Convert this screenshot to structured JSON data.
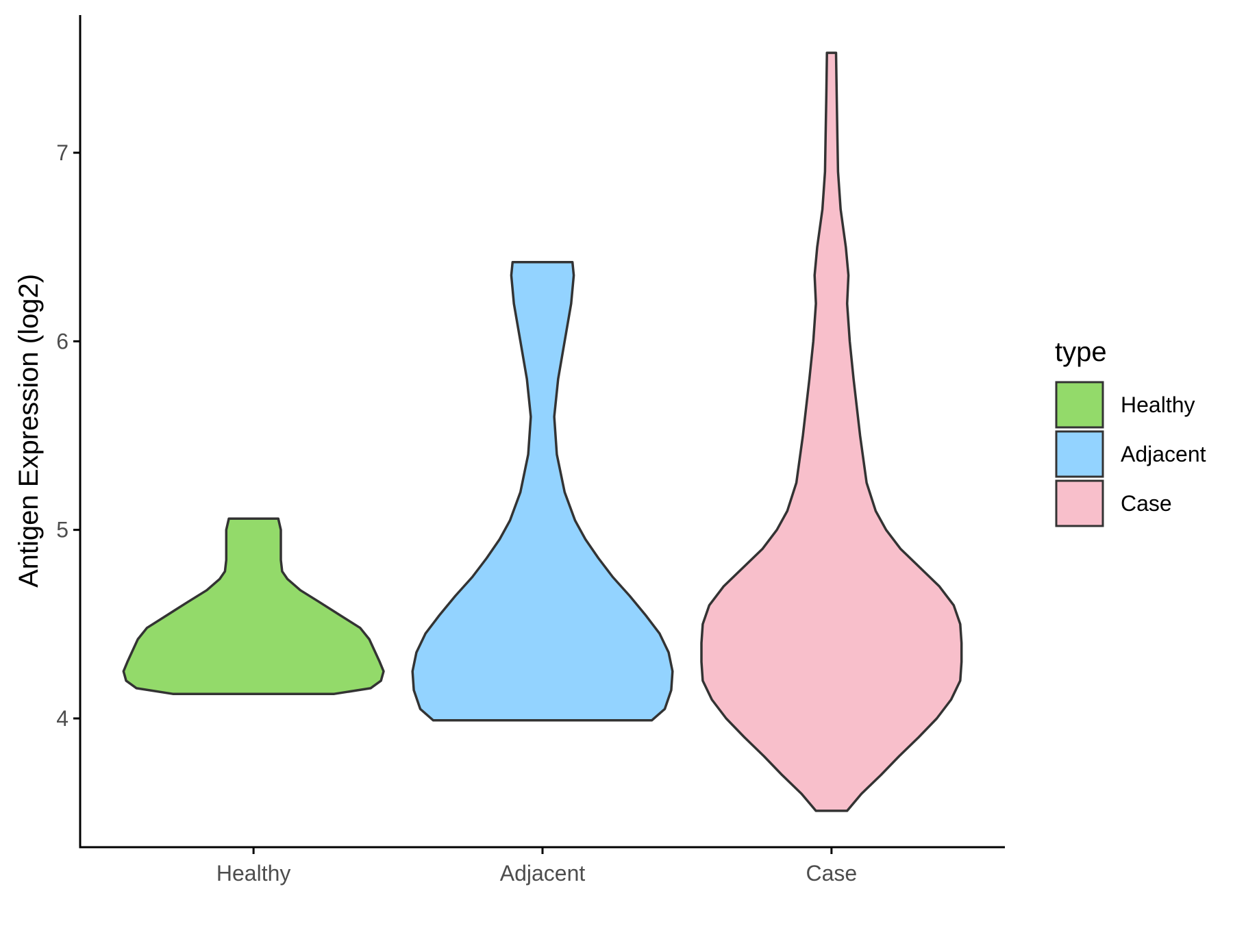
{
  "chart_data": {
    "type": "violin",
    "title": "",
    "xlabel": "",
    "ylabel": "Antigen Expression (log2)",
    "ylim": [
      3.35,
      7.75
    ],
    "yticks": [
      4,
      5,
      6,
      7
    ],
    "categories": [
      "Healthy",
      "Adjacent",
      "Case"
    ],
    "grid": false,
    "legend": {
      "title": "type",
      "position": "right",
      "entries": [
        {
          "label": "Healthy",
          "color": "#93DA6A"
        },
        {
          "label": "Adjacent",
          "color": "#93D3FF"
        },
        {
          "label": "Case",
          "color": "#F8BFCB"
        }
      ]
    },
    "series": [
      {
        "category": "Healthy",
        "color": "#93DA6A",
        "min": 4.13,
        "max": 5.06,
        "profile": [
          [
            4.13,
            0.62
          ],
          [
            4.16,
            0.9
          ],
          [
            4.2,
            0.98
          ],
          [
            4.25,
            1.0
          ],
          [
            4.3,
            0.97
          ],
          [
            4.36,
            0.93
          ],
          [
            4.42,
            0.89
          ],
          [
            4.48,
            0.82
          ],
          [
            4.55,
            0.66
          ],
          [
            4.62,
            0.5
          ],
          [
            4.68,
            0.36
          ],
          [
            4.74,
            0.26
          ],
          [
            4.78,
            0.22
          ],
          [
            4.84,
            0.21
          ],
          [
            4.9,
            0.21
          ],
          [
            4.96,
            0.21
          ],
          [
            5.0,
            0.21
          ],
          [
            5.03,
            0.2
          ],
          [
            5.06,
            0.19
          ]
        ]
      },
      {
        "category": "Adjacent",
        "color": "#93D3FF",
        "min": 3.99,
        "max": 6.42,
        "profile": [
          [
            3.99,
            0.84
          ],
          [
            4.05,
            0.94
          ],
          [
            4.15,
            0.99
          ],
          [
            4.25,
            1.0
          ],
          [
            4.35,
            0.97
          ],
          [
            4.45,
            0.9
          ],
          [
            4.55,
            0.79
          ],
          [
            4.65,
            0.67
          ],
          [
            4.75,
            0.54
          ],
          [
            4.85,
            0.43
          ],
          [
            4.95,
            0.33
          ],
          [
            5.05,
            0.25
          ],
          [
            5.2,
            0.17
          ],
          [
            5.4,
            0.11
          ],
          [
            5.6,
            0.09
          ],
          [
            5.8,
            0.12
          ],
          [
            6.0,
            0.17
          ],
          [
            6.2,
            0.22
          ],
          [
            6.35,
            0.24
          ],
          [
            6.42,
            0.23
          ]
        ]
      },
      {
        "category": "Case",
        "color": "#F8BFCB",
        "min": 3.51,
        "max": 7.53,
        "profile": [
          [
            3.51,
            0.12
          ],
          [
            3.6,
            0.23
          ],
          [
            3.7,
            0.38
          ],
          [
            3.8,
            0.52
          ],
          [
            3.9,
            0.67
          ],
          [
            4.0,
            0.81
          ],
          [
            4.1,
            0.92
          ],
          [
            4.2,
            0.99
          ],
          [
            4.3,
            1.0
          ],
          [
            4.4,
            1.0
          ],
          [
            4.5,
            0.99
          ],
          [
            4.6,
            0.94
          ],
          [
            4.7,
            0.83
          ],
          [
            4.8,
            0.68
          ],
          [
            4.9,
            0.53
          ],
          [
            5.0,
            0.42
          ],
          [
            5.1,
            0.34
          ],
          [
            5.25,
            0.27
          ],
          [
            5.5,
            0.22
          ],
          [
            5.8,
            0.17
          ],
          [
            6.0,
            0.14
          ],
          [
            6.1,
            0.13
          ],
          [
            6.2,
            0.12
          ],
          [
            6.35,
            0.13
          ],
          [
            6.5,
            0.11
          ],
          [
            6.7,
            0.07
          ],
          [
            6.9,
            0.05
          ],
          [
            7.1,
            0.045
          ],
          [
            7.3,
            0.04
          ],
          [
            7.53,
            0.035
          ]
        ]
      }
    ]
  }
}
